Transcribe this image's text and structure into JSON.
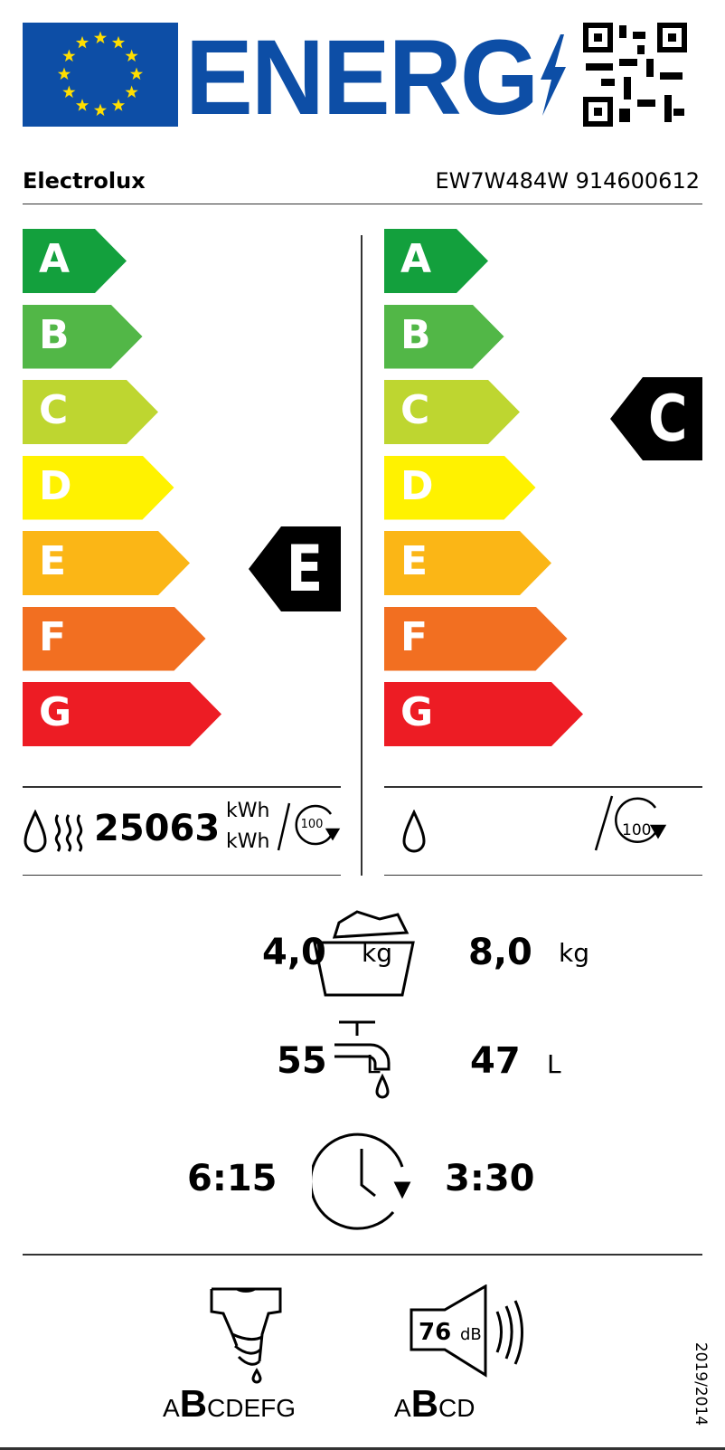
{
  "header": {
    "title": "ENERG",
    "eu_blue": "#0d4ea6",
    "qr_icon": "qr-code"
  },
  "product": {
    "brand": "Electrolux",
    "model": "EW7W484W 914600612"
  },
  "scale": {
    "classes": [
      "A",
      "B",
      "C",
      "D",
      "E",
      "F",
      "G"
    ],
    "colors": [
      "#13a03d",
      "#52b747",
      "#bed630",
      "#fff200",
      "#fbb616",
      "#f26f21",
      "#ed1c24"
    ]
  },
  "left": {
    "rating": "E",
    "energy_value": "25063",
    "energy_unit": "kWh",
    "energy_unit2": "kWh",
    "cycles": "100"
  },
  "right": {
    "rating": "C",
    "cycles": "100"
  },
  "capacity": {
    "left_value": "4,0",
    "left_unit": "kg",
    "right_value": "8,0",
    "right_unit": "kg"
  },
  "water": {
    "left_value": "55",
    "left_unit": "L",
    "right_value": "47",
    "right_unit": "L"
  },
  "duration": {
    "left_value": "6:15",
    "right_value": "3:30"
  },
  "spin": {
    "class_before": "A",
    "class": "B",
    "class_after": "CDEFG"
  },
  "noise": {
    "value": "76",
    "unit": "dB",
    "class_before": "A",
    "class": "B",
    "class_after": "CD"
  },
  "regulation": "2019/2014"
}
